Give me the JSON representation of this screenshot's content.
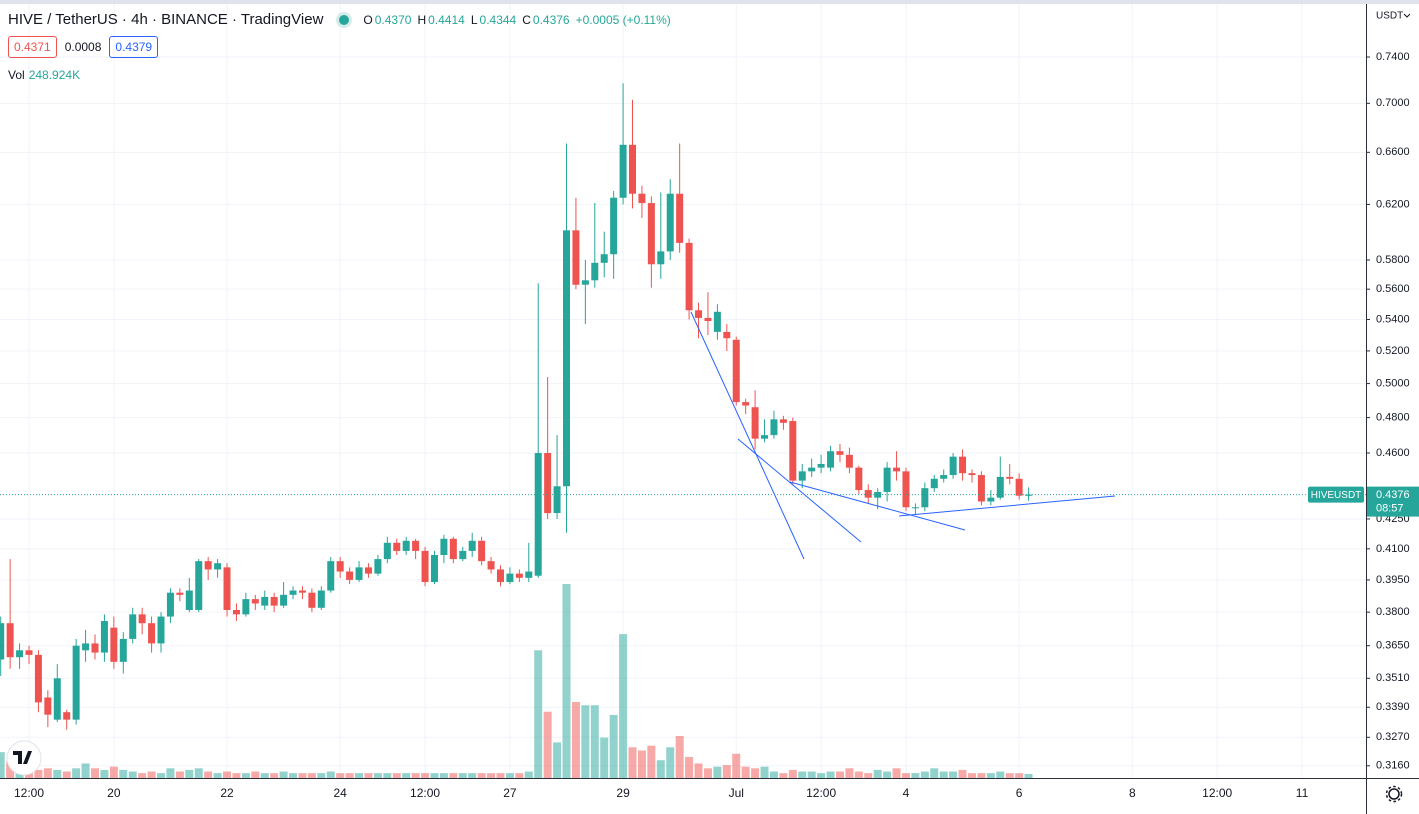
{
  "chart_data": {
    "type": "candlestick",
    "title": "HIVE / TetherUS · 4h · BINANCE · TradingView",
    "ohlc_legend": [
      [
        "O",
        "0.4370"
      ],
      [
        "H",
        "0.4414"
      ],
      [
        "L",
        "0.4344"
      ],
      [
        "C",
        "0.4376"
      ]
    ],
    "change": "+0.0005 (+0.11%)",
    "bid": "0.4371",
    "spread": "0.0008",
    "ask": "0.4379",
    "volume_title": "Vol",
    "volume_label": "248.924K",
    "currency": "USDT",
    "symbol_tag": "HIVEUSDT",
    "last_price_label": "0.4376",
    "countdown": "08:57",
    "up_color": "#26a69a",
    "down_color": "#ef5350",
    "log_scale": true,
    "grid": true,
    "ylim": [
      0.3114,
      0.7877
    ],
    "yticks": [
      {
        "value": 0.316,
        "label": "0.3160"
      },
      {
        "value": 0.327,
        "label": "0.3270"
      },
      {
        "value": 0.339,
        "label": "0.3390"
      },
      {
        "value": 0.351,
        "label": "0.3510"
      },
      {
        "value": 0.365,
        "label": "0.3650"
      },
      {
        "value": 0.38,
        "label": "0.3800"
      },
      {
        "value": 0.395,
        "label": "0.3950"
      },
      {
        "value": 0.41,
        "label": "0.4100"
      },
      {
        "value": 0.425,
        "label": "0.4250"
      },
      {
        "value": 0.46,
        "label": "0.4600"
      },
      {
        "value": 0.48,
        "label": "0.4800"
      },
      {
        "value": 0.5,
        "label": "0.5000"
      },
      {
        "value": 0.52,
        "label": "0.5200"
      },
      {
        "value": 0.54,
        "label": "0.5400"
      },
      {
        "value": 0.56,
        "label": "0.5600"
      },
      {
        "value": 0.58,
        "label": "0.5800"
      },
      {
        "value": 0.62,
        "label": "0.6200"
      },
      {
        "value": 0.66,
        "label": "0.6600"
      },
      {
        "value": 0.7,
        "label": "0.7000"
      },
      {
        "value": 0.74,
        "label": "0.7400"
      }
    ],
    "categories": [
      null,
      null,
      null,
      "12:00",
      null,
      null,
      null,
      null,
      null,
      null,
      null,
      null,
      "20",
      null,
      null,
      null,
      null,
      null,
      null,
      null,
      null,
      null,
      null,
      null,
      "22",
      null,
      null,
      null,
      null,
      null,
      null,
      null,
      null,
      null,
      null,
      null,
      "24",
      null,
      null,
      null,
      null,
      null,
      null,
      null,
      null,
      "12:00",
      null,
      null,
      null,
      null,
      null,
      null,
      null,
      null,
      "27",
      null,
      null,
      null,
      null,
      null,
      null,
      null,
      null,
      null,
      null,
      null,
      "29",
      null,
      null,
      null,
      null,
      null,
      null,
      null,
      null,
      null,
      null,
      null,
      "Jul",
      null,
      null,
      null,
      null,
      null,
      null,
      null,
      null,
      "12:00",
      null,
      null,
      null,
      null,
      null,
      null,
      null,
      null,
      "4",
      null,
      null,
      null,
      null,
      null,
      null,
      null,
      null,
      null,
      null,
      null,
      "6",
      null,
      null,
      null,
      null,
      null,
      null,
      null,
      null,
      null,
      null,
      null,
      "8",
      null,
      null,
      null,
      null,
      null,
      null,
      null,
      null,
      "12:00",
      null,
      null,
      null,
      null,
      null,
      null,
      null,
      null,
      "11"
    ],
    "open": [
      0.359,
      0.375,
      0.36,
      0.363,
      0.361,
      0.343,
      0.334,
      0.337,
      0.334,
      0.363,
      0.366,
      0.362,
      0.373,
      0.358,
      0.368,
      0.379,
      0.375,
      0.366,
      0.378,
      0.389,
      0.381,
      0.381,
      0.404,
      0.4,
      0.401,
      0.381,
      0.379,
      0.386,
      0.383,
      0.387,
      0.383,
      0.388,
      0.39,
      0.389,
      0.382,
      0.39,
      0.404,
      0.399,
      0.395,
      0.401,
      0.398,
      0.405,
      0.413,
      0.409,
      0.414,
      0.409,
      0.394,
      0.407,
      0.415,
      0.405,
      0.409,
      0.414,
      0.404,
      0.4,
      0.394,
      0.398,
      0.396,
      0.397,
      0.46,
      0.428,
      0.442,
      0.601,
      0.563,
      0.566,
      0.578,
      0.584,
      0.625,
      0.666,
      0.628,
      0.621,
      0.577,
      0.586,
      0.628,
      0.592,
      0.546,
      0.541,
      0.532,
      0.532,
      0.527,
      0.489,
      0.486,
      0.468,
      0.47,
      0.479,
      0.478,
      0.445,
      0.45,
      0.452,
      0.452,
      0.461,
      0.459,
      0.452,
      0.44,
      0.436,
      0.439,
      0.452,
      0.45,
      0.431,
      0.431,
      0.441,
      0.446,
      0.448,
      0.458,
      0.449,
      0.448,
      0.434,
      0.436,
      0.447,
      0.446,
      0.437,
      null,
      null,
      null,
      null,
      null,
      null,
      null,
      null,
      null,
      null,
      null,
      null,
      null,
      null,
      null,
      null,
      null,
      null,
      null,
      null,
      null,
      null,
      null,
      null,
      null,
      null,
      null,
      null,
      null
    ],
    "high": [
      0.378,
      0.405,
      0.366,
      0.365,
      0.363,
      0.346,
      0.357,
      0.338,
      0.368,
      0.372,
      0.37,
      0.379,
      0.378,
      0.371,
      0.382,
      0.382,
      0.378,
      0.38,
      0.391,
      0.391,
      0.396,
      0.405,
      0.406,
      0.405,
      0.403,
      0.384,
      0.389,
      0.388,
      0.39,
      0.389,
      0.394,
      0.392,
      0.392,
      0.391,
      0.392,
      0.406,
      0.406,
      0.401,
      0.404,
      0.403,
      0.407,
      0.416,
      0.415,
      0.416,
      0.415,
      0.411,
      0.409,
      0.417,
      0.416,
      0.411,
      0.418,
      0.416,
      0.406,
      0.402,
      0.401,
      0.4,
      0.413,
      0.564,
      0.504,
      0.47,
      0.667,
      0.625,
      0.58,
      0.621,
      0.6,
      0.63,
      0.717,
      0.703,
      0.634,
      0.626,
      0.629,
      0.639,
      0.667,
      0.595,
      0.551,
      0.558,
      0.55,
      0.537,
      0.529,
      0.491,
      0.496,
      0.479,
      0.484,
      0.481,
      0.48,
      0.454,
      0.457,
      0.459,
      0.464,
      0.465,
      0.463,
      0.453,
      0.443,
      0.441,
      0.455,
      0.461,
      0.452,
      0.433,
      0.444,
      0.448,
      0.451,
      0.46,
      0.462,
      0.451,
      0.45,
      0.44,
      0.458,
      0.454,
      0.449,
      0.4414,
      null,
      null,
      null,
      null,
      null,
      null,
      null,
      null,
      null,
      null,
      null,
      null,
      null,
      null,
      null,
      null,
      null,
      null,
      null,
      null,
      null,
      null,
      null,
      null,
      null,
      null,
      null,
      null,
      null
    ],
    "low": [
      0.352,
      0.355,
      0.355,
      0.357,
      0.337,
      0.331,
      0.333,
      0.33,
      0.332,
      0.358,
      0.359,
      0.358,
      0.355,
      0.353,
      0.366,
      0.37,
      0.362,
      0.362,
      0.375,
      0.385,
      0.38,
      0.38,
      0.395,
      0.396,
      0.378,
      0.376,
      0.378,
      0.381,
      0.381,
      0.38,
      0.382,
      0.386,
      0.386,
      0.38,
      0.381,
      0.389,
      0.396,
      0.393,
      0.394,
      0.396,
      0.397,
      0.403,
      0.407,
      0.407,
      0.405,
      0.392,
      0.393,
      0.403,
      0.403,
      0.404,
      0.406,
      0.402,
      0.398,
      0.392,
      0.393,
      0.394,
      0.394,
      0.396,
      0.425,
      0.425,
      0.418,
      0.56,
      0.537,
      0.561,
      0.568,
      0.567,
      0.62,
      0.617,
      0.61,
      0.561,
      0.567,
      0.58,
      0.585,
      0.54,
      0.528,
      0.53,
      0.527,
      0.52,
      0.487,
      0.482,
      0.462,
      0.466,
      0.468,
      0.473,
      0.443,
      0.441,
      0.447,
      0.449,
      0.45,
      0.455,
      0.449,
      0.438,
      0.433,
      0.43,
      0.434,
      0.445,
      0.429,
      0.427,
      0.429,
      0.439,
      0.444,
      0.446,
      0.445,
      0.444,
      0.432,
      0.432,
      0.435,
      0.443,
      0.435,
      0.4344,
      null,
      null,
      null,
      null,
      null,
      null,
      null,
      null,
      null,
      null,
      null,
      null,
      null,
      null,
      null,
      null,
      null,
      null,
      null,
      null,
      null,
      null,
      null,
      null,
      null,
      null,
      null,
      null,
      null
    ],
    "close": [
      0.375,
      0.36,
      0.363,
      0.361,
      0.341,
      0.336,
      0.351,
      0.334,
      0.365,
      0.366,
      0.362,
      0.376,
      0.358,
      0.368,
      0.379,
      0.375,
      0.366,
      0.378,
      0.389,
      0.388,
      0.39,
      0.404,
      0.4,
      0.403,
      0.381,
      0.379,
      0.386,
      0.384,
      0.387,
      0.383,
      0.388,
      0.39,
      0.389,
      0.382,
      0.39,
      0.404,
      0.399,
      0.395,
      0.401,
      0.398,
      0.405,
      0.413,
      0.409,
      0.414,
      0.409,
      0.394,
      0.407,
      0.415,
      0.405,
      0.409,
      0.414,
      0.404,
      0.4,
      0.394,
      0.398,
      0.396,
      0.399,
      0.46,
      0.428,
      0.442,
      0.601,
      0.563,
      0.566,
      0.578,
      0.584,
      0.625,
      0.666,
      0.628,
      0.621,
      0.577,
      0.586,
      0.628,
      0.592,
      0.546,
      0.541,
      0.539,
      0.545,
      0.528,
      0.489,
      0.487,
      0.468,
      0.47,
      0.479,
      0.477,
      0.445,
      0.45,
      0.452,
      0.454,
      0.461,
      0.459,
      0.452,
      0.44,
      0.436,
      0.439,
      0.452,
      0.45,
      0.431,
      0.431,
      0.441,
      0.446,
      0.448,
      0.458,
      0.449,
      0.448,
      0.434,
      0.436,
      0.447,
      0.446,
      0.437,
      0.4376,
      null,
      null,
      null,
      null,
      null,
      null,
      null,
      null,
      null,
      null,
      null,
      null,
      null,
      null,
      null,
      null,
      null,
      null,
      null,
      null,
      null,
      null,
      null,
      null,
      null,
      null,
      null,
      null,
      null
    ],
    "volume": [
      1600000,
      1000000,
      700000,
      500000,
      500000,
      600000,
      500000,
      400000,
      600000,
      900000,
      600000,
      500000,
      700000,
      500000,
      400000,
      300000,
      400000,
      300000,
      600000,
      400000,
      500000,
      600000,
      400000,
      300000,
      400000,
      300000,
      300000,
      400000,
      300000,
      300000,
      400000,
      300000,
      300000,
      300000,
      300000,
      400000,
      300000,
      300000,
      300000,
      300000,
      300000,
      300000,
      300000,
      300000,
      300000,
      300000,
      300000,
      300000,
      300000,
      300000,
      300000,
      300000,
      300000,
      300000,
      300000,
      300000,
      400000,
      7900000,
      4100000,
      2200000,
      12000000,
      4700000,
      4500000,
      4500000,
      2500000,
      3900000,
      8900000,
      1900000,
      1700000,
      2000000,
      1100000,
      1900000,
      2600000,
      1300000,
      900000,
      600000,
      700000,
      800000,
      1500000,
      700000,
      600000,
      700000,
      400000,
      300000,
      500000,
      400000,
      400000,
      300000,
      400000,
      400000,
      600000,
      400000,
      300000,
      500000,
      400000,
      600000,
      300000,
      300000,
      400000,
      600000,
      400000,
      400000,
      500000,
      300000,
      300000,
      300000,
      400000,
      300000,
      300000,
      248924,
      null,
      null,
      null,
      null,
      null,
      null,
      null,
      null,
      null,
      null,
      null,
      null,
      null,
      null,
      null,
      null,
      null,
      null,
      null,
      null,
      null,
      null,
      null,
      null,
      null,
      null,
      null,
      null,
      null
    ]
  }
}
